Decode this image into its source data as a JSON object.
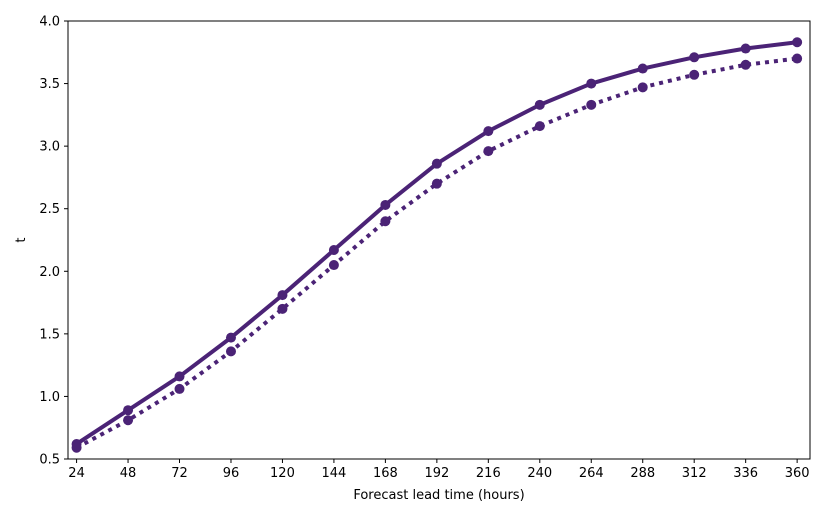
{
  "chart_data": {
    "type": "line",
    "title": "",
    "xlabel": "Forecast lead time (hours)",
    "ylabel": "t",
    "x": [
      24,
      48,
      72,
      96,
      120,
      144,
      168,
      192,
      216,
      240,
      264,
      288,
      312,
      336,
      360
    ],
    "xlim": [
      20,
      366
    ],
    "ylim": [
      0.5,
      4.0
    ],
    "xticks": [
      24,
      48,
      72,
      96,
      120,
      144,
      168,
      192,
      216,
      240,
      264,
      288,
      312,
      336,
      360
    ],
    "yticks": [
      "0.5",
      "1.0",
      "1.5",
      "2.0",
      "2.5",
      "3.0",
      "3.5",
      "4.0"
    ],
    "grid": false,
    "legend": "none",
    "series": [
      {
        "style": "solid",
        "color": "#4b2376",
        "values": [
          0.62,
          0.89,
          1.16,
          1.47,
          1.81,
          2.17,
          2.53,
          2.86,
          3.12,
          3.33,
          3.5,
          3.62,
          3.71,
          3.78,
          3.83
        ]
      },
      {
        "style": "dotted",
        "color": "#4b2376",
        "values": [
          0.59,
          0.81,
          1.06,
          1.36,
          1.7,
          2.05,
          2.4,
          2.7,
          2.96,
          3.16,
          3.33,
          3.47,
          3.57,
          3.65,
          3.7
        ]
      }
    ]
  }
}
